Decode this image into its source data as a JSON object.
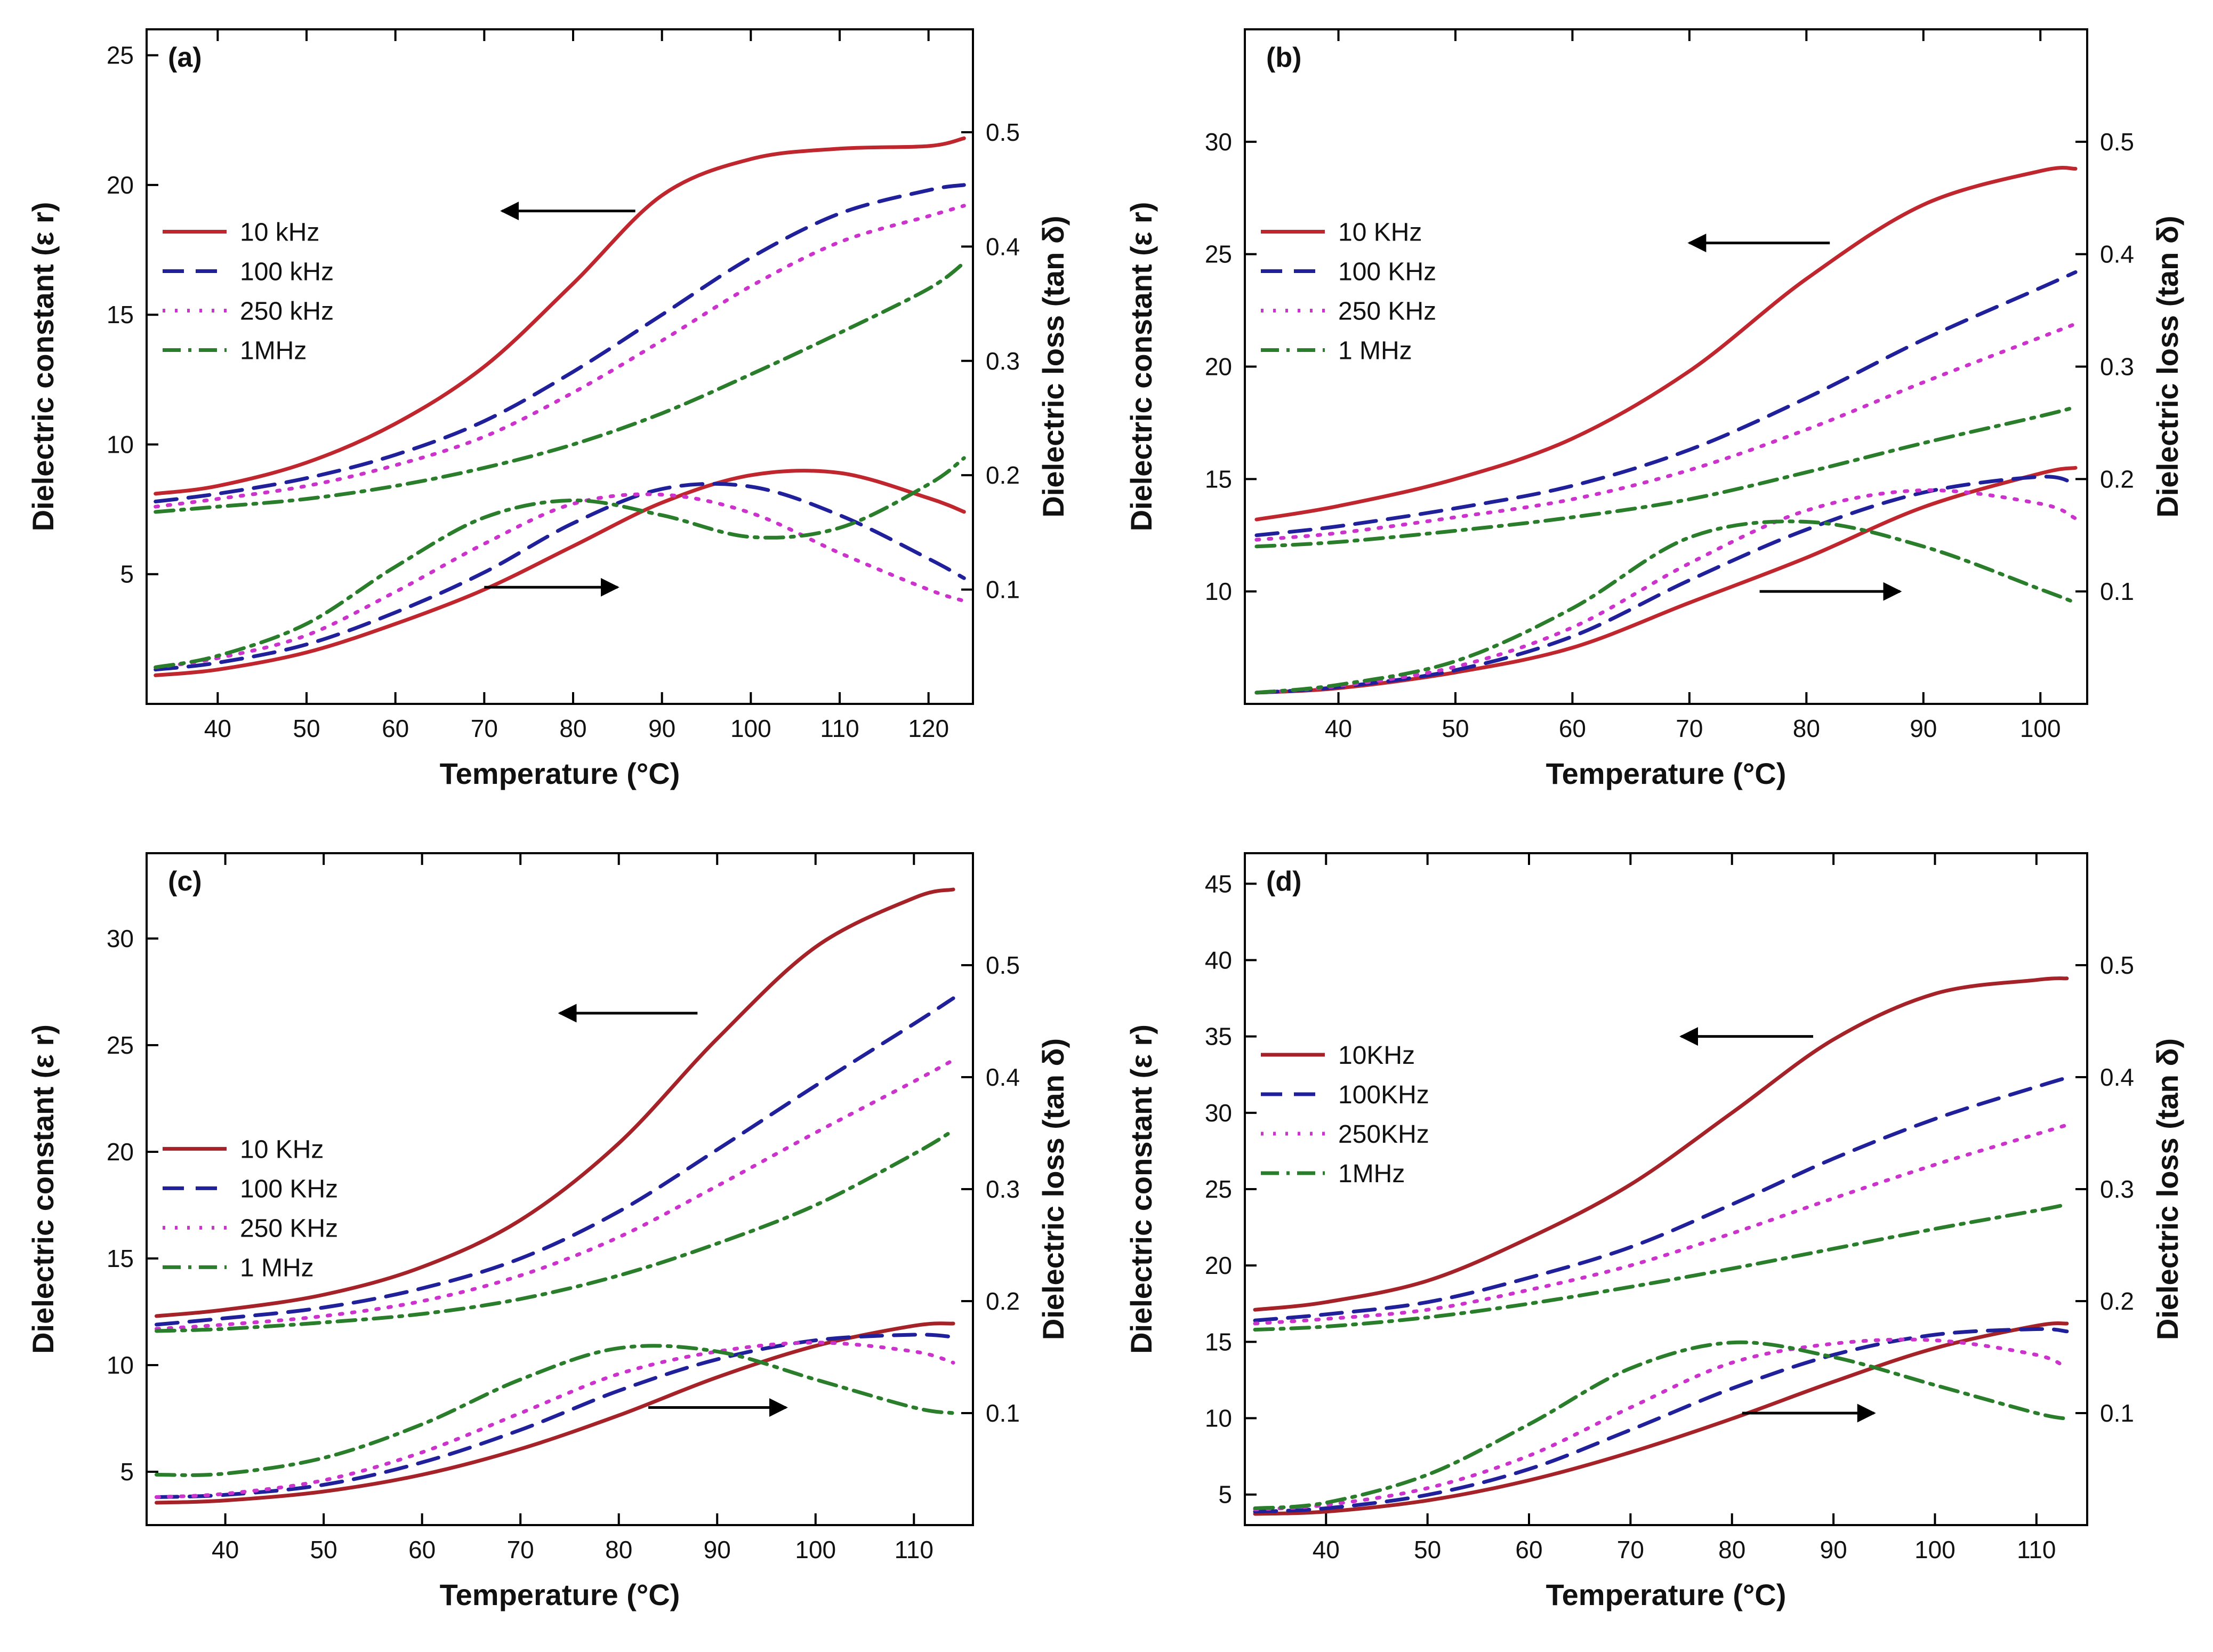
{
  "figure": {
    "panels_order": [
      "a",
      "b",
      "c",
      "d"
    ]
  },
  "chart_data": [
    {
      "type": "line",
      "panel_label": "(a)",
      "xlabel": "Temperature (°C)",
      "ylabel_left": "Dielectric constant (ε r)",
      "ylabel_right": "Dielectric loss (tan δ)",
      "xlim": [
        32,
        125
      ],
      "ylim_left": [
        0,
        26
      ],
      "ylim_right": [
        0,
        0.59
      ],
      "xticks": [
        40,
        50,
        60,
        70,
        80,
        90,
        100,
        110,
        120
      ],
      "yticks_left": [
        5,
        10,
        15,
        20,
        25
      ],
      "yticks_right": [
        0.1,
        0.2,
        0.3,
        0.4,
        0.5
      ],
      "legend": {
        "position": "upper-left",
        "entries": [
          "10 kHz",
          "100 kHz",
          "250 kHz",
          "1MHz"
        ]
      },
      "arrow_left_at": {
        "x": [
          87,
          72
        ],
        "y": 19
      },
      "arrow_right_at": {
        "x": [
          70,
          85
        ],
        "y": 0.102
      },
      "x": [
        33,
        40,
        50,
        60,
        70,
        80,
        90,
        100,
        110,
        120,
        124
      ],
      "series": [
        {
          "name": "10 kHz",
          "axis": "left",
          "color": "#c0262d",
          "dash": "solid",
          "values": [
            8.1,
            8.4,
            9.3,
            10.8,
            13.0,
            16.2,
            19.6,
            21.0,
            21.4,
            21.5,
            21.8
          ]
        },
        {
          "name": "100 kHz",
          "axis": "left",
          "color": "#20209a",
          "dash": "dashed",
          "values": [
            7.8,
            8.1,
            8.7,
            9.6,
            10.9,
            12.8,
            15.0,
            17.2,
            18.9,
            19.8,
            20.0
          ]
        },
        {
          "name": "250 kHz",
          "axis": "left",
          "color": "#cc33cc",
          "dash": "dotted",
          "values": [
            7.6,
            7.9,
            8.4,
            9.2,
            10.3,
            12.0,
            14.0,
            16.1,
            17.8,
            18.8,
            19.2
          ]
        },
        {
          "name": "1MHz",
          "axis": "left",
          "color": "#2a7d2a",
          "dash": "dashdot",
          "values": [
            7.4,
            7.6,
            7.9,
            8.4,
            9.1,
            10.0,
            11.2,
            12.7,
            14.3,
            16.0,
            17.0
          ]
        },
        {
          "name": "10 kHz",
          "axis": "right",
          "color": "#c0262d",
          "dash": "solid",
          "values": [
            0.025,
            0.03,
            0.045,
            0.07,
            0.1,
            0.138,
            0.176,
            0.2,
            0.202,
            0.18,
            0.168
          ]
        },
        {
          "name": "100 kHz",
          "axis": "right",
          "color": "#20209a",
          "dash": "dashed",
          "values": [
            0.03,
            0.036,
            0.052,
            0.08,
            0.115,
            0.158,
            0.188,
            0.19,
            0.165,
            0.127,
            0.11
          ]
        },
        {
          "name": "250 kHz",
          "axis": "right",
          "color": "#cc33cc",
          "dash": "dotted",
          "values": [
            0.032,
            0.04,
            0.06,
            0.098,
            0.14,
            0.175,
            0.183,
            0.167,
            0.132,
            0.1,
            0.09
          ]
        },
        {
          "name": "1MHz",
          "axis": "right",
          "color": "#2a7d2a",
          "dash": "dashdot",
          "values": [
            0.032,
            0.042,
            0.07,
            0.12,
            0.163,
            0.178,
            0.165,
            0.146,
            0.154,
            0.192,
            0.215
          ]
        }
      ]
    },
    {
      "type": "line",
      "panel_label": "(b)",
      "xlabel": "Temperature (°C)",
      "ylabel_left": "Dielectric constant (ε r)",
      "ylabel_right": "Dielectric loss (tan δ)",
      "xlim": [
        32,
        104
      ],
      "ylim_left": [
        5,
        35
      ],
      "ylim_right": [
        0,
        0.6
      ],
      "xticks": [
        40,
        50,
        60,
        70,
        80,
        90,
        100
      ],
      "yticks_left": [
        10,
        15,
        20,
        25,
        30
      ],
      "yticks_right": [
        0.1,
        0.2,
        0.3,
        0.4,
        0.5
      ],
      "legend": {
        "position": "upper-left",
        "entries": [
          "10 KHz",
          "100 KHz",
          "250 KHz",
          "1 MHz"
        ]
      },
      "arrow_left_at": {
        "x": [
          82,
          70
        ],
        "y": 25.5
      },
      "arrow_right_at": {
        "x": [
          76,
          88
        ],
        "y": 0.1
      },
      "x": [
        33,
        40,
        50,
        60,
        70,
        80,
        90,
        100,
        103
      ],
      "series": [
        {
          "name": "10 KHz",
          "axis": "left",
          "color": "#c0262d",
          "dash": "solid",
          "values": [
            13.2,
            13.8,
            15.0,
            16.8,
            19.8,
            23.9,
            27.2,
            28.7,
            28.8
          ]
        },
        {
          "name": "100 KHz",
          "axis": "left",
          "color": "#20209a",
          "dash": "dashed",
          "values": [
            12.5,
            12.9,
            13.7,
            14.7,
            16.3,
            18.6,
            21.2,
            23.5,
            24.2
          ]
        },
        {
          "name": "250 KHz",
          "axis": "left",
          "color": "#cc33cc",
          "dash": "dotted",
          "values": [
            12.3,
            12.6,
            13.3,
            14.1,
            15.4,
            17.2,
            19.3,
            21.3,
            21.9
          ]
        },
        {
          "name": "1 MHz",
          "axis": "left",
          "color": "#2a7d2a",
          "dash": "dashdot",
          "values": [
            12.0,
            12.2,
            12.7,
            13.3,
            14.1,
            15.3,
            16.6,
            17.8,
            18.2
          ]
        },
        {
          "name": "10 KHz",
          "axis": "right",
          "color": "#c0262d",
          "dash": "solid",
          "values": [
            0.01,
            0.014,
            0.028,
            0.05,
            0.09,
            0.13,
            0.175,
            0.205,
            0.21
          ]
        },
        {
          "name": "100 KHz",
          "axis": "right",
          "color": "#20209a",
          "dash": "dashed",
          "values": [
            0.01,
            0.015,
            0.03,
            0.06,
            0.11,
            0.155,
            0.188,
            0.202,
            0.195
          ]
        },
        {
          "name": "250 KHz",
          "axis": "right",
          "color": "#cc33cc",
          "dash": "dotted",
          "values": [
            0.01,
            0.016,
            0.033,
            0.068,
            0.125,
            0.172,
            0.19,
            0.178,
            0.165
          ]
        },
        {
          "name": "1 MHz",
          "axis": "right",
          "color": "#2a7d2a",
          "dash": "dashdot",
          "values": [
            0.01,
            0.017,
            0.038,
            0.085,
            0.148,
            0.162,
            0.14,
            0.102,
            0.09
          ]
        }
      ]
    },
    {
      "type": "line",
      "panel_label": "(c)",
      "xlabel": "Temperature (°C)",
      "ylabel_left": "Dielectric constant (ε r)",
      "ylabel_right": "Dielectric loss (tan δ)",
      "xlim": [
        32,
        116
      ],
      "ylim_left": [
        2.5,
        34
      ],
      "ylim_right": [
        0,
        0.6
      ],
      "xticks": [
        40,
        50,
        60,
        70,
        80,
        90,
        100,
        110
      ],
      "yticks_left": [
        5,
        10,
        15,
        20,
        25,
        30
      ],
      "yticks_right": [
        0.1,
        0.2,
        0.3,
        0.4,
        0.5
      ],
      "legend": {
        "position": "center-left",
        "entries": [
          "10 KHz",
          "100 KHz",
          "250 KHz",
          "1 MHz"
        ]
      },
      "arrow_left_at": {
        "x": [
          88,
          74
        ],
        "y": 26.5
      },
      "arrow_right_at": {
        "x": [
          83,
          97
        ],
        "y": 0.105
      },
      "x": [
        33,
        40,
        50,
        60,
        70,
        80,
        90,
        100,
        110,
        114
      ],
      "series": [
        {
          "name": "10 KHz",
          "axis": "left",
          "color": "#a52228",
          "dash": "solid",
          "values": [
            12.3,
            12.6,
            13.3,
            14.6,
            16.8,
            20.4,
            25.3,
            29.6,
            31.9,
            32.3
          ]
        },
        {
          "name": "100 KHz",
          "axis": "left",
          "color": "#20209a",
          "dash": "dashed",
          "values": [
            11.9,
            12.2,
            12.7,
            13.6,
            15.0,
            17.2,
            20.1,
            23.1,
            26.0,
            27.2
          ]
        },
        {
          "name": "250 KHz",
          "axis": "left",
          "color": "#cc33cc",
          "dash": "dotted",
          "values": [
            11.7,
            11.9,
            12.3,
            13.0,
            14.2,
            16.0,
            18.4,
            20.9,
            23.3,
            24.3
          ]
        },
        {
          "name": "1 MHz",
          "axis": "left",
          "color": "#2a7d2a",
          "dash": "dashdot",
          "values": [
            11.6,
            11.7,
            12.0,
            12.4,
            13.1,
            14.2,
            15.7,
            17.5,
            19.9,
            21.0
          ]
        },
        {
          "name": "10 KHz",
          "axis": "right",
          "color": "#a52228",
          "dash": "solid",
          "values": [
            0.02,
            0.022,
            0.03,
            0.045,
            0.068,
            0.098,
            0.132,
            0.16,
            0.178,
            0.18
          ]
        },
        {
          "name": "100 KHz",
          "axis": "right",
          "color": "#20209a",
          "dash": "dashed",
          "values": [
            0.025,
            0.027,
            0.036,
            0.056,
            0.085,
            0.12,
            0.148,
            0.165,
            0.17,
            0.168
          ]
        },
        {
          "name": "250 KHz",
          "axis": "right",
          "color": "#cc33cc",
          "dash": "dotted",
          "values": [
            0.025,
            0.028,
            0.04,
            0.065,
            0.1,
            0.135,
            0.155,
            0.163,
            0.155,
            0.145
          ]
        },
        {
          "name": "1 MHz",
          "axis": "right",
          "color": "#2a7d2a",
          "dash": "dashdot",
          "values": [
            0.045,
            0.046,
            0.06,
            0.09,
            0.13,
            0.158,
            0.155,
            0.13,
            0.105,
            0.1
          ]
        }
      ]
    },
    {
      "type": "line",
      "panel_label": "(d)",
      "xlabel": "Temperature (°C)",
      "ylabel_left": "Dielectric constant (ε r)",
      "ylabel_right": "Dielectric loss (tan δ)",
      "xlim": [
        32,
        115
      ],
      "ylim_left": [
        3,
        47
      ],
      "ylim_right": [
        0,
        0.6
      ],
      "xticks": [
        40,
        50,
        60,
        70,
        80,
        90,
        100,
        110
      ],
      "yticks_left": [
        5,
        10,
        15,
        20,
        25,
        30,
        35,
        40,
        45
      ],
      "yticks_right": [
        0.1,
        0.2,
        0.3,
        0.4,
        0.5
      ],
      "legend": {
        "position": "upper-left",
        "entries": [
          "10KHz",
          "100KHz",
          "250KHz",
          "1MHz"
        ]
      },
      "arrow_left_at": {
        "x": [
          88,
          75
        ],
        "y": 35
      },
      "arrow_right_at": {
        "x": [
          81,
          94
        ],
        "y": 0.1
      },
      "x": [
        33,
        40,
        50,
        60,
        70,
        80,
        90,
        100,
        110,
        113
      ],
      "series": [
        {
          "name": "10KHz",
          "axis": "left",
          "color": "#a52228",
          "dash": "solid",
          "values": [
            17.1,
            17.6,
            19.0,
            21.8,
            25.3,
            30.0,
            34.8,
            37.8,
            38.7,
            38.8
          ]
        },
        {
          "name": "100KHz",
          "axis": "left",
          "color": "#20209a",
          "dash": "dashed",
          "values": [
            16.4,
            16.8,
            17.6,
            19.2,
            21.2,
            24.0,
            27.0,
            29.6,
            31.7,
            32.3
          ]
        },
        {
          "name": "250KHz",
          "axis": "left",
          "color": "#cc33cc",
          "dash": "dotted",
          "values": [
            16.2,
            16.5,
            17.1,
            18.4,
            20.0,
            22.1,
            24.4,
            26.6,
            28.6,
            29.2
          ]
        },
        {
          "name": "1MHz",
          "axis": "left",
          "color": "#2a7d2a",
          "dash": "dashdot",
          "values": [
            15.8,
            16.0,
            16.6,
            17.5,
            18.6,
            19.8,
            21.1,
            22.4,
            23.6,
            24.0
          ]
        },
        {
          "name": "10KHz",
          "axis": "right",
          "color": "#a52228",
          "dash": "solid",
          "values": [
            0.01,
            0.012,
            0.022,
            0.04,
            0.065,
            0.095,
            0.128,
            0.158,
            0.178,
            0.18
          ]
        },
        {
          "name": "100KHz",
          "axis": "right",
          "color": "#20209a",
          "dash": "dashed",
          "values": [
            0.012,
            0.015,
            0.027,
            0.05,
            0.085,
            0.122,
            0.152,
            0.17,
            0.175,
            0.173
          ]
        },
        {
          "name": "250KHz",
          "axis": "right",
          "color": "#cc33cc",
          "dash": "dotted",
          "values": [
            0.014,
            0.018,
            0.033,
            0.062,
            0.105,
            0.145,
            0.162,
            0.165,
            0.152,
            0.14
          ]
        },
        {
          "name": "1MHz",
          "axis": "right",
          "color": "#2a7d2a",
          "dash": "dashdot",
          "values": [
            0.015,
            0.02,
            0.045,
            0.09,
            0.14,
            0.163,
            0.15,
            0.125,
            0.1,
            0.095
          ]
        }
      ]
    }
  ]
}
